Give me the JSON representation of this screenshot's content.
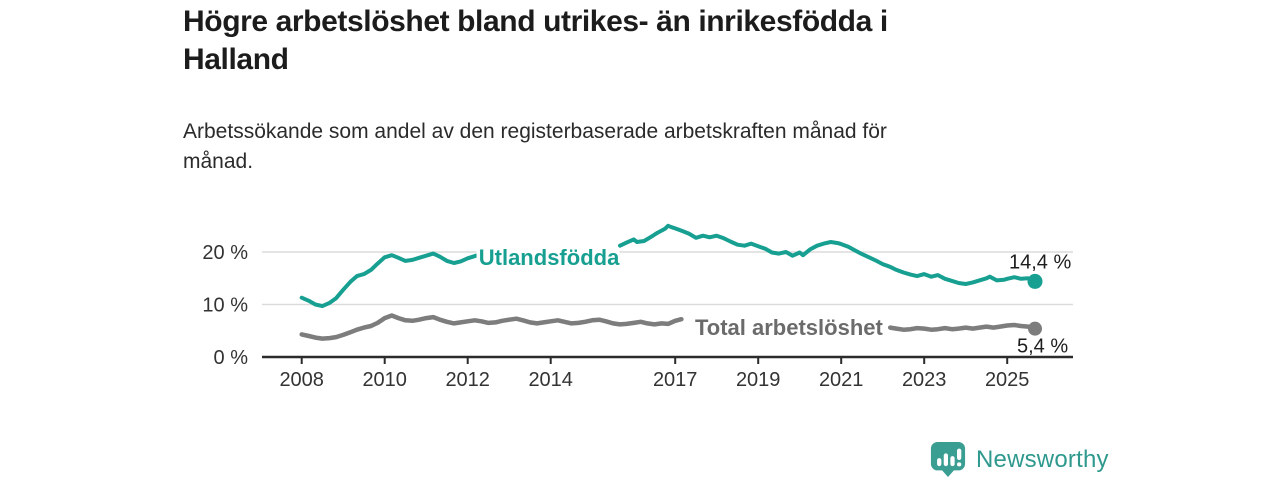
{
  "header": {
    "title": "Högre arbetslöshet bland utrikes- än inrikesfödda i Halland",
    "title_lines": [
      "Högre arbetslöshet bland utrikes- än inrikesfödda i",
      "Halland"
    ],
    "subtitle": "Arbetssökande som andel av den registerbaserade arbetskraften månad för månad.",
    "subtitle_lines": [
      "Arbetssökande som andel av den registerbaserade arbetskraften månad för",
      "månad."
    ]
  },
  "footer": {
    "brand": "Newsworthy",
    "logo_icon": "newsworthy-bar-chart-bubble-icon"
  },
  "colors": {
    "accent_teal": "#17a091",
    "series_gray": "#7d7d7d",
    "series_gray_label": "#6b6b6b",
    "text_dark": "#1d1d1d",
    "text_medium": "#333333",
    "gridline": "#dcdcdc",
    "axis": "#2b2b2b",
    "logo_teal": "#3a9e92",
    "background": "#ffffff"
  },
  "chart_data": {
    "type": "line",
    "title": "Högre arbetslöshet bland utrikes- än inrikesfödda i Halland",
    "subtitle": "Arbetssökande som andel av den registerbaserade arbetskraften månad för månad.",
    "xlabel": "",
    "ylabel": "",
    "unit": "%",
    "grid": "horizontal-light",
    "legend_position": "inline-on-line",
    "ylim": [
      0,
      26
    ],
    "x_range": [
      2008,
      2025.75
    ],
    "yticks": [
      {
        "value": 0,
        "label": "0 %"
      },
      {
        "value": 10,
        "label": "10 %"
      },
      {
        "value": 20,
        "label": "20 %"
      }
    ],
    "xticks": [
      {
        "value": 2008,
        "label": "2008"
      },
      {
        "value": 2010,
        "label": "2010"
      },
      {
        "value": 2012,
        "label": "2012"
      },
      {
        "value": 2014,
        "label": "2014"
      },
      {
        "value": 2017,
        "label": "2017"
      },
      {
        "value": 2019,
        "label": "2019"
      },
      {
        "value": 2021,
        "label": "2021"
      },
      {
        "value": 2023,
        "label": "2023"
      },
      {
        "value": 2025,
        "label": "2025"
      }
    ],
    "series": [
      {
        "name": "Utlandsfödda",
        "color": "#17a091",
        "label_color": "#17a091",
        "end_label": "14,4 %",
        "final_value": 14.4,
        "label_gap": [
          2012.25,
          2015.62
        ],
        "label_anchor": [
          2013.96,
          19.05
        ],
        "points": [
          [
            2008.0,
            11.3
          ],
          [
            2008.17,
            10.7
          ],
          [
            2008.33,
            10.0
          ],
          [
            2008.5,
            9.7
          ],
          [
            2008.67,
            10.3
          ],
          [
            2008.83,
            11.2
          ],
          [
            2009.0,
            12.8
          ],
          [
            2009.17,
            14.3
          ],
          [
            2009.33,
            15.4
          ],
          [
            2009.5,
            15.8
          ],
          [
            2009.67,
            16.6
          ],
          [
            2009.83,
            17.8
          ],
          [
            2010.0,
            19.0
          ],
          [
            2010.17,
            19.4
          ],
          [
            2010.33,
            18.9
          ],
          [
            2010.5,
            18.3
          ],
          [
            2010.67,
            18.5
          ],
          [
            2010.83,
            18.9
          ],
          [
            2011.0,
            19.3
          ],
          [
            2011.17,
            19.7
          ],
          [
            2011.33,
            19.1
          ],
          [
            2011.5,
            18.3
          ],
          [
            2011.67,
            17.9
          ],
          [
            2011.83,
            18.2
          ],
          [
            2012.0,
            18.8
          ],
          [
            2012.2,
            19.3
          ],
          [
            2012.5,
            18.9
          ],
          [
            2013.0,
            18.8
          ],
          [
            2013.5,
            19.0
          ],
          [
            2014.0,
            19.3
          ],
          [
            2014.5,
            19.7
          ],
          [
            2015.0,
            20.2
          ],
          [
            2015.33,
            20.7
          ],
          [
            2015.67,
            21.2
          ],
          [
            2015.83,
            21.8
          ],
          [
            2016.0,
            22.4
          ],
          [
            2016.08,
            21.9
          ],
          [
            2016.25,
            22.1
          ],
          [
            2016.42,
            22.9
          ],
          [
            2016.58,
            23.7
          ],
          [
            2016.75,
            24.4
          ],
          [
            2016.83,
            25.0
          ],
          [
            2016.92,
            24.7
          ],
          [
            2017.0,
            24.5
          ],
          [
            2017.17,
            24.0
          ],
          [
            2017.33,
            23.5
          ],
          [
            2017.5,
            22.7
          ],
          [
            2017.67,
            23.1
          ],
          [
            2017.83,
            22.8
          ],
          [
            2018.0,
            23.1
          ],
          [
            2018.17,
            22.6
          ],
          [
            2018.33,
            22.0
          ],
          [
            2018.5,
            21.4
          ],
          [
            2018.67,
            21.2
          ],
          [
            2018.83,
            21.6
          ],
          [
            2019.0,
            21.1
          ],
          [
            2019.17,
            20.6
          ],
          [
            2019.33,
            19.9
          ],
          [
            2019.5,
            19.7
          ],
          [
            2019.67,
            20.0
          ],
          [
            2019.83,
            19.3
          ],
          [
            2020.0,
            19.9
          ],
          [
            2020.08,
            19.4
          ],
          [
            2020.25,
            20.5
          ],
          [
            2020.42,
            21.2
          ],
          [
            2020.58,
            21.6
          ],
          [
            2020.75,
            21.9
          ],
          [
            2020.92,
            21.7
          ],
          [
            2021.0,
            21.5
          ],
          [
            2021.17,
            21.0
          ],
          [
            2021.33,
            20.3
          ],
          [
            2021.5,
            19.6
          ],
          [
            2021.67,
            19.0
          ],
          [
            2021.83,
            18.4
          ],
          [
            2022.0,
            17.7
          ],
          [
            2022.17,
            17.2
          ],
          [
            2022.33,
            16.6
          ],
          [
            2022.5,
            16.1
          ],
          [
            2022.67,
            15.7
          ],
          [
            2022.83,
            15.4
          ],
          [
            2023.0,
            15.8
          ],
          [
            2023.17,
            15.3
          ],
          [
            2023.33,
            15.6
          ],
          [
            2023.5,
            14.9
          ],
          [
            2023.67,
            14.5
          ],
          [
            2023.83,
            14.1
          ],
          [
            2024.0,
            13.9
          ],
          [
            2024.17,
            14.2
          ],
          [
            2024.33,
            14.6
          ],
          [
            2024.5,
            15.0
          ],
          [
            2024.58,
            15.3
          ],
          [
            2024.75,
            14.6
          ],
          [
            2024.92,
            14.7
          ],
          [
            2025.0,
            14.9
          ],
          [
            2025.17,
            15.2
          ],
          [
            2025.33,
            14.9
          ],
          [
            2025.5,
            15.0
          ],
          [
            2025.67,
            14.4
          ]
        ]
      },
      {
        "name": "Total arbetslöshet",
        "color": "#7d7d7d",
        "label_color": "#6b6b6b",
        "end_label": "5,4 %",
        "final_value": 5.4,
        "label_gap": [
          2017.18,
          2022.13
        ],
        "label_anchor": [
          2019.74,
          5.71
        ],
        "points": [
          [
            2008.0,
            4.3
          ],
          [
            2008.17,
            4.0
          ],
          [
            2008.33,
            3.7
          ],
          [
            2008.5,
            3.5
          ],
          [
            2008.67,
            3.6
          ],
          [
            2008.83,
            3.8
          ],
          [
            2009.0,
            4.2
          ],
          [
            2009.17,
            4.7
          ],
          [
            2009.33,
            5.2
          ],
          [
            2009.5,
            5.6
          ],
          [
            2009.67,
            5.9
          ],
          [
            2009.83,
            6.5
          ],
          [
            2010.0,
            7.4
          ],
          [
            2010.17,
            7.9
          ],
          [
            2010.33,
            7.4
          ],
          [
            2010.5,
            7.0
          ],
          [
            2010.67,
            6.9
          ],
          [
            2010.83,
            7.1
          ],
          [
            2011.0,
            7.4
          ],
          [
            2011.17,
            7.6
          ],
          [
            2011.33,
            7.1
          ],
          [
            2011.5,
            6.7
          ],
          [
            2011.67,
            6.4
          ],
          [
            2011.83,
            6.6
          ],
          [
            2012.0,
            6.8
          ],
          [
            2012.17,
            7.0
          ],
          [
            2012.33,
            6.8
          ],
          [
            2012.5,
            6.5
          ],
          [
            2012.67,
            6.6
          ],
          [
            2012.83,
            6.9
          ],
          [
            2013.0,
            7.1
          ],
          [
            2013.17,
            7.3
          ],
          [
            2013.33,
            7.0
          ],
          [
            2013.5,
            6.6
          ],
          [
            2013.67,
            6.4
          ],
          [
            2013.83,
            6.6
          ],
          [
            2014.0,
            6.8
          ],
          [
            2014.17,
            7.0
          ],
          [
            2014.33,
            6.7
          ],
          [
            2014.5,
            6.4
          ],
          [
            2014.67,
            6.5
          ],
          [
            2014.83,
            6.7
          ],
          [
            2015.0,
            7.0
          ],
          [
            2015.17,
            7.1
          ],
          [
            2015.33,
            6.8
          ],
          [
            2015.5,
            6.4
          ],
          [
            2015.67,
            6.2
          ],
          [
            2015.83,
            6.3
          ],
          [
            2016.0,
            6.5
          ],
          [
            2016.17,
            6.7
          ],
          [
            2016.33,
            6.4
          ],
          [
            2016.5,
            6.2
          ],
          [
            2016.67,
            6.4
          ],
          [
            2016.83,
            6.3
          ],
          [
            2017.0,
            6.9
          ],
          [
            2017.15,
            7.2
          ],
          [
            2017.5,
            7.0
          ],
          [
            2018.0,
            6.8
          ],
          [
            2018.5,
            6.4
          ],
          [
            2019.0,
            6.2
          ],
          [
            2019.5,
            6.0
          ],
          [
            2020.0,
            6.9
          ],
          [
            2020.5,
            7.3
          ],
          [
            2021.0,
            6.9
          ],
          [
            2021.5,
            6.3
          ],
          [
            2022.0,
            5.8
          ],
          [
            2022.18,
            5.6
          ],
          [
            2022.33,
            5.4
          ],
          [
            2022.5,
            5.2
          ],
          [
            2022.67,
            5.3
          ],
          [
            2022.83,
            5.5
          ],
          [
            2023.0,
            5.4
          ],
          [
            2023.17,
            5.2
          ],
          [
            2023.33,
            5.3
          ],
          [
            2023.5,
            5.5
          ],
          [
            2023.67,
            5.3
          ],
          [
            2023.83,
            5.4
          ],
          [
            2024.0,
            5.6
          ],
          [
            2024.17,
            5.4
          ],
          [
            2024.33,
            5.6
          ],
          [
            2024.5,
            5.8
          ],
          [
            2024.67,
            5.6
          ],
          [
            2024.83,
            5.8
          ],
          [
            2025.0,
            6.0
          ],
          [
            2025.17,
            6.1
          ],
          [
            2025.33,
            5.9
          ],
          [
            2025.5,
            5.8
          ],
          [
            2025.67,
            5.4
          ]
        ]
      }
    ]
  }
}
